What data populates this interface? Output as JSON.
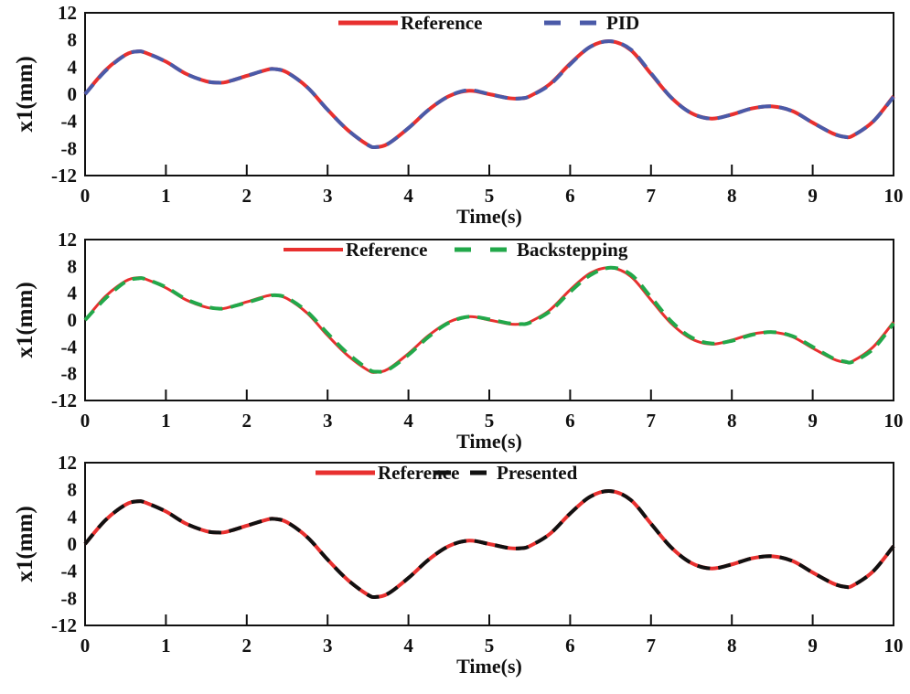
{
  "chart_data": [
    {
      "type": "line",
      "xlabel": "Time(s)",
      "ylabel": "x1(mm)",
      "xlim": [
        0,
        10
      ],
      "ylim": [
        -12,
        12
      ],
      "xticks": [
        "0",
        "1",
        "2",
        "3",
        "4",
        "5",
        "6",
        "7",
        "8",
        "9",
        "10"
      ],
      "yticks": [
        "12",
        "8",
        "4",
        "0",
        "-4",
        "-8",
        "-12"
      ],
      "grid": false,
      "legend_position": "top-center",
      "x": [
        0,
        0.25,
        0.5,
        0.65,
        0.75,
        1.0,
        1.25,
        1.5,
        1.65,
        1.75,
        2.0,
        2.25,
        2.35,
        2.5,
        2.75,
        3.0,
        3.25,
        3.5,
        3.6,
        3.75,
        4.0,
        4.25,
        4.5,
        4.75,
        5.0,
        5.25,
        5.4,
        5.5,
        5.75,
        6.0,
        6.25,
        6.5,
        6.75,
        7.0,
        7.25,
        7.5,
        7.75,
        8.0,
        8.25,
        8.5,
        8.75,
        9.0,
        9.25,
        9.4,
        9.5,
        9.75,
        10.0
      ],
      "series": [
        {
          "name": "Reference",
          "color": "#e8302f",
          "style": "solid",
          "values": [
            0,
            3.5,
            5.8,
            6.3,
            6.1,
            4.8,
            3.0,
            1.9,
            1.7,
            1.8,
            2.7,
            3.6,
            3.7,
            3.2,
            1.0,
            -2.3,
            -5.3,
            -7.5,
            -7.8,
            -7.3,
            -5.0,
            -2.3,
            -0.3,
            0.5,
            0.0,
            -0.6,
            -0.6,
            -0.3,
            1.5,
            4.5,
            7.0,
            7.8,
            6.5,
            3.0,
            -0.5,
            -2.8,
            -3.6,
            -3.0,
            -2.1,
            -1.8,
            -2.5,
            -4.2,
            -5.8,
            -6.3,
            -6.1,
            -4.0,
            -0.3
          ]
        },
        {
          "name": "PID",
          "color": "#4a5aa8",
          "style": "dashed",
          "values": [
            0,
            3.4,
            5.8,
            6.3,
            6.1,
            4.8,
            3.0,
            1.9,
            1.7,
            1.8,
            2.7,
            3.6,
            3.7,
            3.2,
            1.0,
            -2.3,
            -5.3,
            -7.5,
            -7.8,
            -7.3,
            -5.0,
            -2.3,
            -0.3,
            0.6,
            0.0,
            -0.6,
            -0.6,
            -0.3,
            1.4,
            4.4,
            7.0,
            7.8,
            6.6,
            3.1,
            -0.5,
            -2.8,
            -3.6,
            -3.0,
            -2.1,
            -1.8,
            -2.5,
            -4.2,
            -5.8,
            -6.3,
            -6.1,
            -4.0,
            -0.4
          ]
        }
      ]
    },
    {
      "type": "line",
      "xlabel": "Time(s)",
      "ylabel": "x1(mm)",
      "xlim": [
        0,
        10
      ],
      "ylim": [
        -12,
        12
      ],
      "xticks": [
        "0",
        "1",
        "2",
        "3",
        "4",
        "5",
        "6",
        "7",
        "8",
        "9",
        "10"
      ],
      "yticks": [
        "12",
        "8",
        "4",
        "0",
        "-4",
        "-8",
        "-12"
      ],
      "grid": false,
      "legend_position": "top-center",
      "x": [
        0,
        0.25,
        0.5,
        0.65,
        0.75,
        1.0,
        1.25,
        1.5,
        1.65,
        1.75,
        2.0,
        2.25,
        2.35,
        2.5,
        2.75,
        3.0,
        3.25,
        3.5,
        3.6,
        3.75,
        4.0,
        4.25,
        4.5,
        4.75,
        5.0,
        5.25,
        5.4,
        5.5,
        5.75,
        6.0,
        6.25,
        6.5,
        6.75,
        7.0,
        7.25,
        7.5,
        7.75,
        8.0,
        8.25,
        8.5,
        8.75,
        9.0,
        9.25,
        9.4,
        9.5,
        9.75,
        10.0
      ],
      "series": [
        {
          "name": "Reference",
          "color": "#e8302f",
          "style": "solid",
          "values": [
            0,
            3.5,
            5.8,
            6.3,
            6.1,
            4.8,
            3.0,
            1.9,
            1.7,
            1.8,
            2.7,
            3.6,
            3.7,
            3.2,
            1.0,
            -2.3,
            -5.3,
            -7.5,
            -7.8,
            -7.3,
            -5.0,
            -2.3,
            -0.3,
            0.5,
            0.0,
            -0.6,
            -0.6,
            -0.3,
            1.5,
            4.5,
            7.0,
            7.8,
            6.5,
            3.0,
            -0.5,
            -2.8,
            -3.6,
            -3.0,
            -2.1,
            -1.8,
            -2.5,
            -4.2,
            -5.8,
            -6.3,
            -6.1,
            -4.0,
            -0.3
          ]
        },
        {
          "name": "Backstepping",
          "color": "#22a84a",
          "style": "dashed",
          "values": [
            0,
            3.2,
            5.7,
            6.2,
            6.1,
            4.9,
            3.1,
            2.0,
            1.7,
            1.8,
            2.6,
            3.5,
            3.7,
            3.3,
            1.2,
            -2.0,
            -5.0,
            -7.3,
            -7.7,
            -7.4,
            -5.2,
            -2.5,
            -0.4,
            0.5,
            0.1,
            -0.5,
            -0.6,
            -0.4,
            1.3,
            4.2,
            6.7,
            7.8,
            6.8,
            3.4,
            -0.2,
            -2.6,
            -3.5,
            -3.1,
            -2.2,
            -1.8,
            -2.4,
            -4.0,
            -5.7,
            -6.2,
            -6.2,
            -4.3,
            -0.5
          ]
        }
      ]
    },
    {
      "type": "line",
      "xlabel": "Time(s)",
      "ylabel": "x1(mm)",
      "xlim": [
        0,
        10
      ],
      "ylim": [
        -12,
        12
      ],
      "xticks": [
        "0",
        "1",
        "2",
        "3",
        "4",
        "5",
        "6",
        "7",
        "8",
        "9",
        "10"
      ],
      "yticks": [
        "12",
        "8",
        "4",
        "0",
        "-4",
        "-8",
        "-12"
      ],
      "grid": false,
      "legend_position": "top-center",
      "x": [
        0,
        0.25,
        0.5,
        0.65,
        0.75,
        1.0,
        1.25,
        1.5,
        1.65,
        1.75,
        2.0,
        2.25,
        2.35,
        2.5,
        2.75,
        3.0,
        3.25,
        3.5,
        3.6,
        3.75,
        4.0,
        4.25,
        4.5,
        4.75,
        5.0,
        5.25,
        5.4,
        5.5,
        5.75,
        6.0,
        6.25,
        6.5,
        6.75,
        7.0,
        7.25,
        7.5,
        7.75,
        8.0,
        8.25,
        8.5,
        8.75,
        9.0,
        9.25,
        9.4,
        9.5,
        9.75,
        10.0
      ],
      "series": [
        {
          "name": "Reference",
          "color": "#e8302f",
          "style": "solid",
          "values": [
            0,
            3.5,
            5.8,
            6.3,
            6.1,
            4.8,
            3.0,
            1.9,
            1.7,
            1.8,
            2.7,
            3.6,
            3.7,
            3.2,
            1.0,
            -2.3,
            -5.3,
            -7.5,
            -7.8,
            -7.3,
            -5.0,
            -2.3,
            -0.3,
            0.5,
            0.0,
            -0.6,
            -0.6,
            -0.3,
            1.5,
            4.5,
            7.0,
            7.8,
            6.5,
            3.0,
            -0.5,
            -2.8,
            -3.6,
            -3.0,
            -2.1,
            -1.8,
            -2.5,
            -4.2,
            -5.8,
            -6.3,
            -6.1,
            -4.0,
            -0.3
          ]
        },
        {
          "name": "Presented",
          "color": "#111111",
          "style": "dashed",
          "values": [
            0,
            3.5,
            5.8,
            6.3,
            6.1,
            4.8,
            3.0,
            1.9,
            1.7,
            1.8,
            2.7,
            3.6,
            3.7,
            3.2,
            1.0,
            -2.3,
            -5.3,
            -7.5,
            -7.8,
            -7.3,
            -5.0,
            -2.3,
            -0.3,
            0.5,
            0.0,
            -0.6,
            -0.6,
            -0.3,
            1.5,
            4.5,
            7.0,
            7.8,
            6.5,
            3.0,
            -0.5,
            -2.8,
            -3.6,
            -3.0,
            -2.1,
            -1.8,
            -2.5,
            -4.2,
            -5.8,
            -6.3,
            -6.1,
            -4.0,
            -0.3
          ]
        }
      ]
    }
  ]
}
